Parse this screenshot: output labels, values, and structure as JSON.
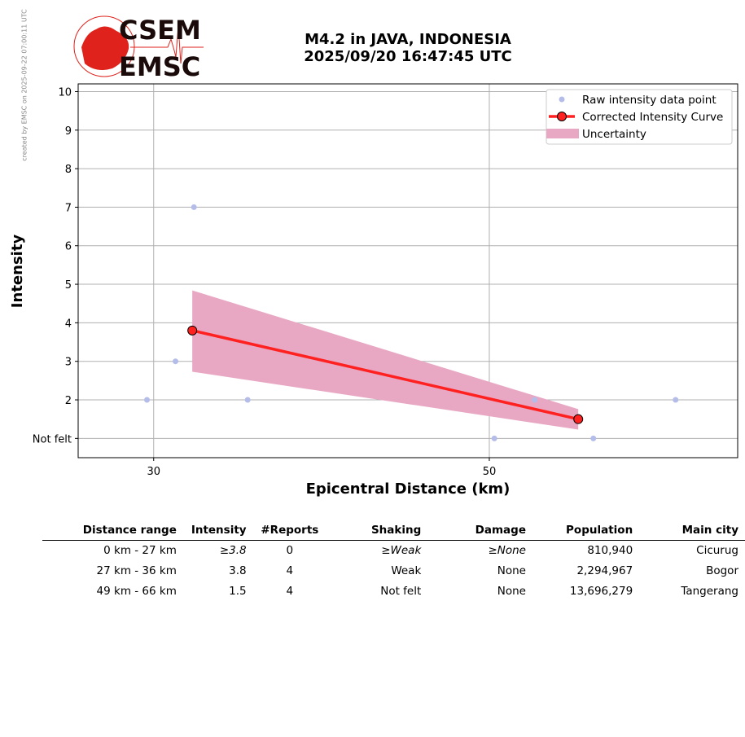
{
  "watermark": "created by EMSC on 2025-09-22 07:00:11 UTC",
  "logo": {
    "line1": "CSEM",
    "line2": "EMSC"
  },
  "title": {
    "line1": "M4.2 in JAVA, INDONESIA",
    "line2": "2025/09/20 16:47:45 UTC"
  },
  "chart_data": {
    "type": "scatter",
    "xlabel": "Epicentral Distance (km)",
    "ylabel": "Intensity",
    "xlim": [
      25.5,
      64.8
    ],
    "ylim": [
      0.5,
      10.2
    ],
    "xticks": [
      {
        "v": 30,
        "label": "30"
      },
      {
        "v": 50,
        "label": "50"
      }
    ],
    "yticks": [
      {
        "v": 1,
        "label": "Not felt"
      },
      {
        "v": 2,
        "label": "2"
      },
      {
        "v": 3,
        "label": "3"
      },
      {
        "v": 4,
        "label": "4"
      },
      {
        "v": 5,
        "label": "5"
      },
      {
        "v": 6,
        "label": "6"
      },
      {
        "v": 7,
        "label": "7"
      },
      {
        "v": 8,
        "label": "8"
      },
      {
        "v": 9,
        "label": "9"
      },
      {
        "v": 10,
        "label": "10"
      }
    ],
    "grid": true,
    "legend_position": "top-right",
    "series": [
      {
        "name": "Raw intensity data point",
        "kind": "points",
        "color": "#b4bdea",
        "points": [
          [
            29.6,
            2
          ],
          [
            31.3,
            3
          ],
          [
            32.4,
            7
          ],
          [
            35.6,
            2
          ],
          [
            50.3,
            1
          ],
          [
            52.7,
            2
          ],
          [
            56.2,
            1
          ],
          [
            61.1,
            2
          ]
        ]
      },
      {
        "name": "Corrected Intensity Curve",
        "kind": "line",
        "color": "#ff2020",
        "points": [
          [
            32.3,
            3.8
          ],
          [
            55.3,
            1.5
          ]
        ]
      },
      {
        "name": "Uncertainty",
        "kind": "band",
        "color": "#e8a8c4",
        "x": [
          32.3,
          55.3
        ],
        "upper": [
          4.84,
          1.76
        ],
        "lower": [
          2.73,
          1.23
        ]
      }
    ]
  },
  "table": {
    "headers": [
      "Distance range",
      "Intensity",
      "#Reports",
      "Shaking",
      "Damage",
      "Population",
      "Main city"
    ],
    "rows": [
      [
        "0 km -   27 km",
        "≥3.8",
        "0",
        "≥Weak",
        "≥None",
        "810,940",
        "Cicurug"
      ],
      [
        "27 km -   36 km",
        "3.8",
        "4",
        "Weak",
        "None",
        "2,294,967",
        "Bogor"
      ],
      [
        "49 km -   66 km",
        "1.5",
        "4",
        "Not felt",
        "None",
        "13,696,279",
        "Tangerang"
      ]
    ]
  }
}
